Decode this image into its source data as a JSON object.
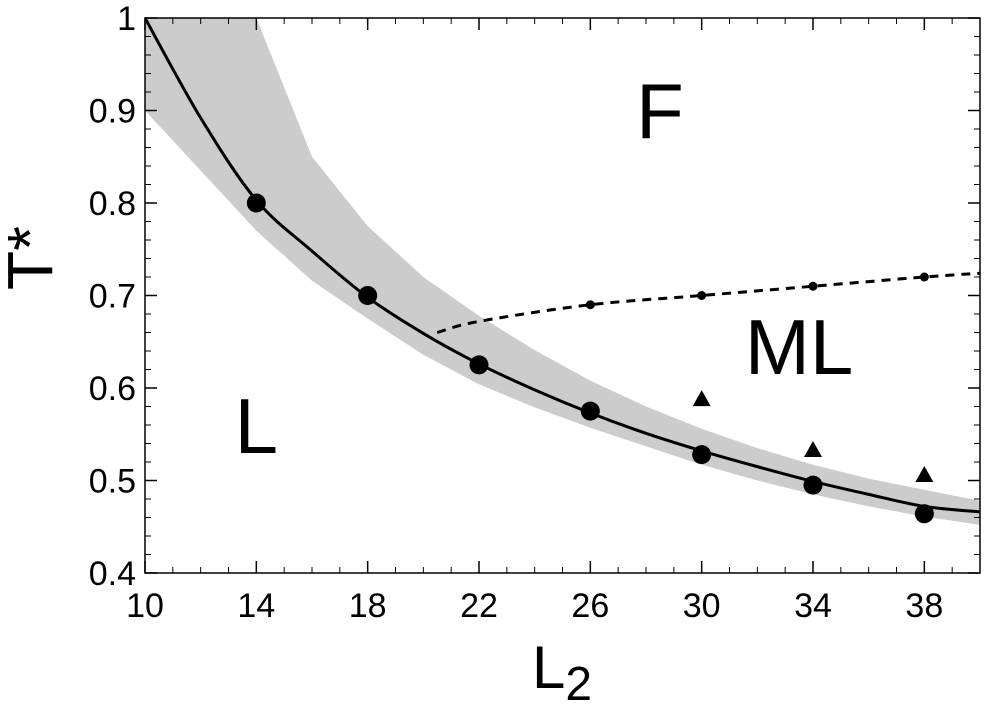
{
  "chart_data": {
    "type": "scatter",
    "title": "",
    "xlabel": "L",
    "xlabel_subscript": "2",
    "ylabel": "T*",
    "xlim": [
      10,
      40
    ],
    "ylim": [
      0.4,
      1.0
    ],
    "xticks": [
      10,
      14,
      18,
      22,
      26,
      30,
      34,
      38
    ],
    "xtick_labels": [
      "10",
      "14",
      "18",
      "22",
      "26",
      "30",
      "34",
      "38"
    ],
    "yticks": [
      0.4,
      0.5,
      0.6,
      0.7,
      0.8,
      0.9,
      1.0
    ],
    "ytick_labels": [
      "0.4",
      "0.5",
      "0.6",
      "0.7",
      "0.8",
      "0.9",
      "1"
    ],
    "grid": false,
    "legend": "none",
    "colors": {
      "marks": "#000000",
      "band": "#cccccc"
    },
    "regions": [
      {
        "label": "F",
        "x": 28.5,
        "y": 0.87
      },
      {
        "label": "ML",
        "x": 33.5,
        "y": 0.615
      },
      {
        "label": "L",
        "x": 14,
        "y": 0.53
      }
    ],
    "series": [
      {
        "type": "scatter",
        "marker": "circle-large",
        "x": [
          14,
          18,
          22,
          26,
          30,
          34,
          38
        ],
        "y": [
          0.8,
          0.7,
          0.625,
          0.575,
          0.528,
          0.495,
          0.464
        ]
      },
      {
        "type": "scatter",
        "marker": "circle-small",
        "x": [
          26,
          30,
          34,
          38
        ],
        "y": [
          0.69,
          0.7,
          0.71,
          0.72
        ]
      },
      {
        "type": "scatter",
        "marker": "triangle",
        "x": [
          30,
          34,
          38
        ],
        "y": [
          0.588,
          0.533,
          0.506
        ]
      },
      {
        "type": "line",
        "style": "solid",
        "x": [
          10,
          12,
          14,
          16,
          18,
          20,
          22,
          24,
          26,
          28,
          30,
          32,
          34,
          36,
          38,
          40
        ],
        "y": [
          1.0,
          0.892,
          0.803,
          0.748,
          0.698,
          0.659,
          0.626,
          0.598,
          0.573,
          0.551,
          0.532,
          0.515,
          0.499,
          0.485,
          0.472,
          0.466
        ]
      },
      {
        "type": "line",
        "style": "dashed",
        "x": [
          20.5,
          22,
          26,
          30,
          34,
          38,
          40
        ],
        "y": [
          0.66,
          0.672,
          0.69,
          0.7,
          0.71,
          0.72,
          0.724
        ]
      },
      {
        "type": "area",
        "x": [
          10,
          12,
          14,
          16,
          18,
          20,
          22,
          24,
          26,
          28,
          30,
          32,
          34,
          36,
          38,
          40
        ],
        "y_low": [
          0.9,
          0.835,
          0.77,
          0.716,
          0.675,
          0.636,
          0.604,
          0.579,
          0.557,
          0.537,
          0.517,
          0.5,
          0.485,
          0.472,
          0.461,
          0.452
        ],
        "y_high": [
          1.0,
          1.0,
          1.0,
          0.85,
          0.775,
          0.72,
          0.678,
          0.641,
          0.608,
          0.58,
          0.556,
          0.535,
          0.517,
          0.502,
          0.49,
          0.478
        ]
      }
    ]
  }
}
